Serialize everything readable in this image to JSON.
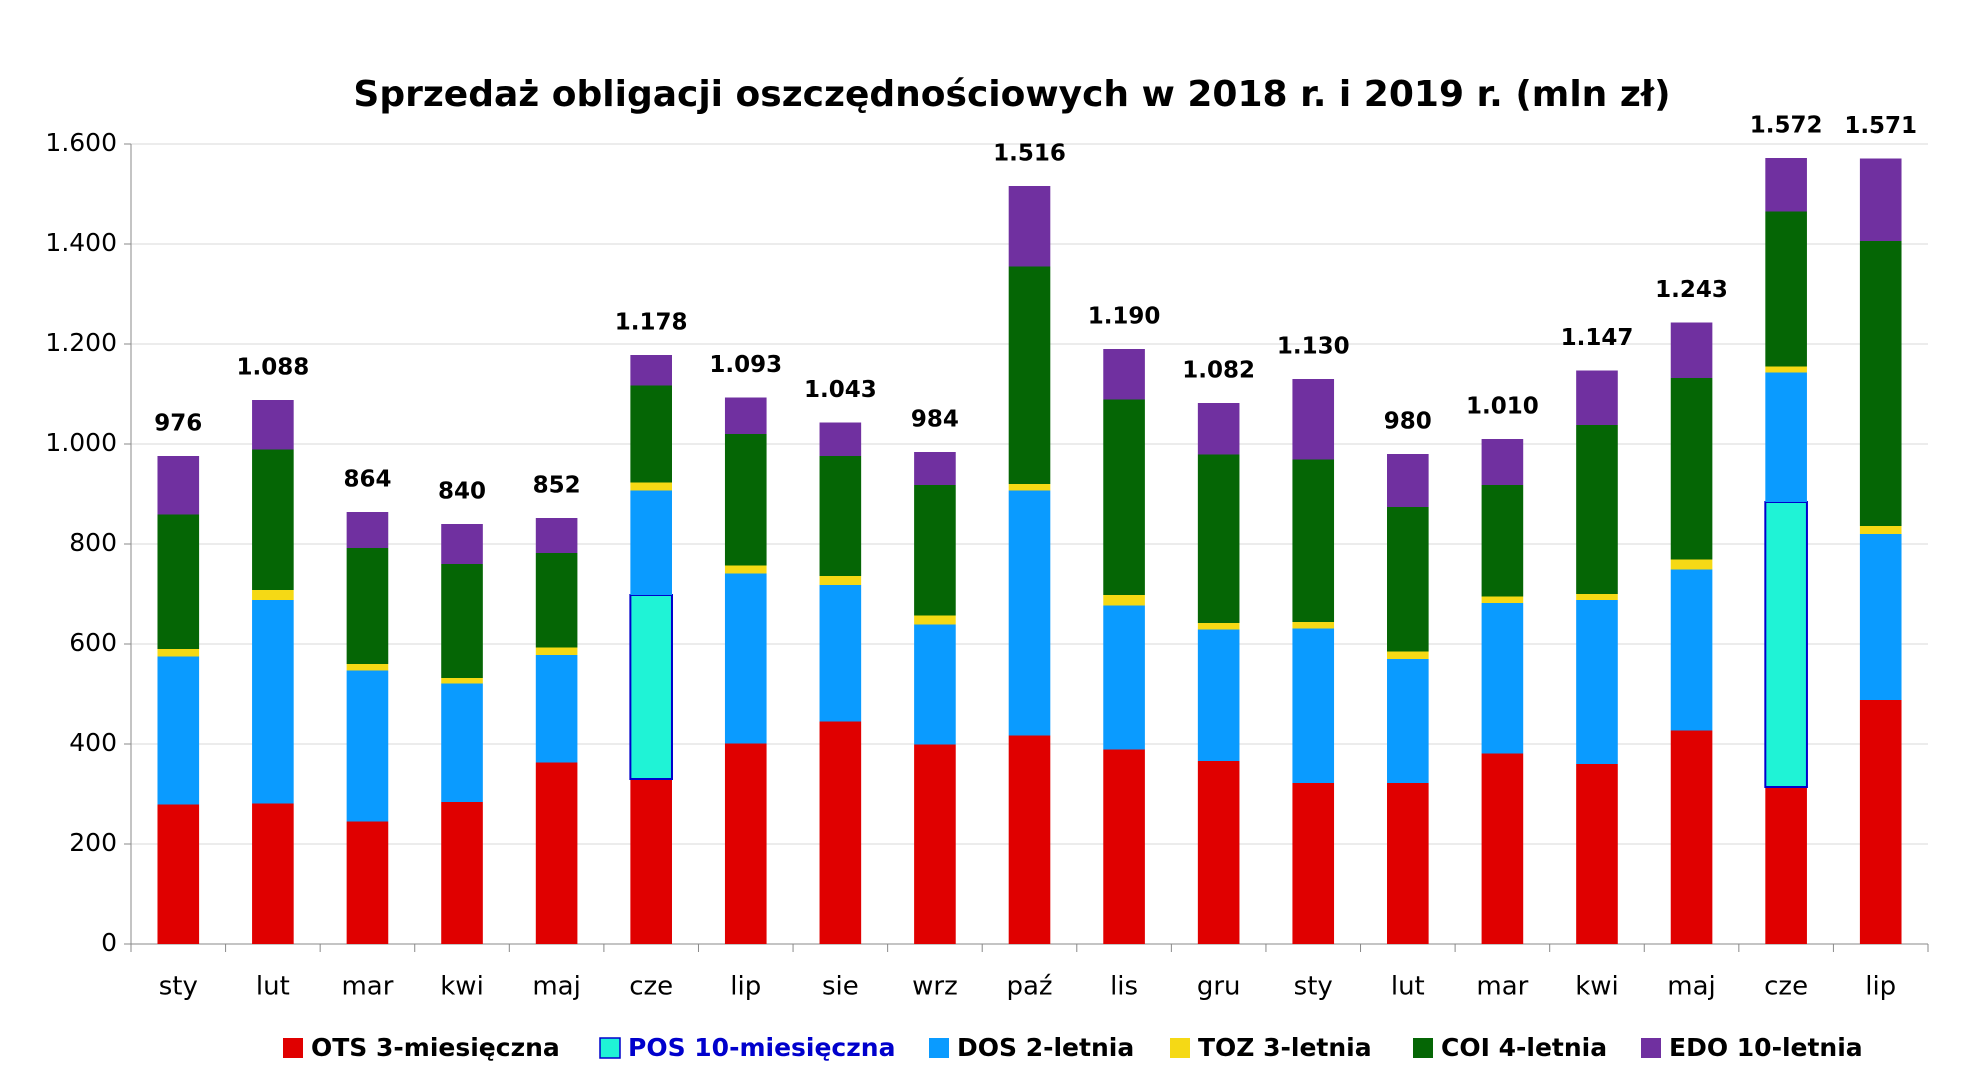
{
  "chart_data": {
    "type": "stacked-bar",
    "title": "Sprzedaż obligacji oszczędnościowych w 2018 r. i 2019 r. (mln zł)",
    "categories": [
      "sty",
      "lut",
      "mar",
      "kwi",
      "maj",
      "cze",
      "lip",
      "sie",
      "wrz",
      "paź",
      "lis",
      "gru",
      "sty",
      "lut",
      "mar",
      "kwi",
      "maj",
      "cze",
      "lip"
    ],
    "series": [
      {
        "name": "OTS 3-miesięczna",
        "color": "#e00000",
        "values": [
          279,
          281,
          245,
          284,
          363,
          330,
          401,
          445,
          399,
          417,
          389,
          366,
          322,
          322,
          381,
          360,
          427,
          314,
          488
        ]
      },
      {
        "name": "POS 10-miesięczna",
        "color": "#1ff3d6",
        "outline": "#0000cc",
        "label_color": "#0000cc",
        "values": [
          null,
          null,
          null,
          null,
          null,
          368,
          null,
          null,
          null,
          null,
          null,
          null,
          null,
          null,
          null,
          null,
          null,
          570,
          null
        ]
      },
      {
        "name": "DOS 2-letnia",
        "color": "#0a9bff",
        "values": [
          296,
          407,
          302,
          237,
          215,
          209,
          340,
          273,
          240,
          490,
          288,
          263,
          309,
          248,
          301,
          328,
          322,
          259,
          332
        ]
      },
      {
        "name": "TOZ 3-letnia",
        "color": "#f5d915",
        "values": [
          15,
          20,
          13,
          11,
          15,
          16,
          16,
          18,
          18,
          13,
          21,
          13,
          13,
          15,
          13,
          12,
          20,
          12,
          16
        ]
      },
      {
        "name": "COI 4-letnia",
        "color": "#056605",
        "values": [
          269,
          281,
          232,
          228,
          189,
          194,
          263,
          240,
          261,
          435,
          391,
          337,
          325,
          289,
          223,
          338,
          363,
          310,
          570
        ]
      },
      {
        "name": "EDO 10-letnia",
        "color": "#7030a0",
        "values": [
          117,
          99,
          72,
          80,
          70,
          61,
          73,
          67,
          66,
          161,
          101,
          103,
          161,
          106,
          92,
          109,
          111,
          107,
          165
        ]
      }
    ],
    "totals": {
      "values": [
        976,
        1088,
        864,
        840,
        852,
        1178,
        1093,
        1043,
        984,
        1516,
        1190,
        1082,
        1130,
        980,
        1010,
        1147,
        1243,
        1572,
        1571
      ],
      "value_labels": [
        "976",
        "1.088",
        "864",
        "840",
        "852",
        "1.178",
        "1.093",
        "1.043",
        "984",
        "1.516",
        "1.190",
        "1.082",
        "1.130",
        "980",
        "1.010",
        "1.147",
        "1.243",
        "1.572",
        "1.571"
      ]
    },
    "ylim": [
      0,
      1600
    ],
    "yticks": [
      0,
      200,
      400,
      600,
      800,
      {
        "value": 1000,
        "label": "1.000"
      },
      {
        "value": 1200,
        "label": "1.200"
      },
      {
        "value": 1400,
        "label": "1.400"
      },
      {
        "value": 1600,
        "label": "1.600"
      }
    ],
    "grid": true
  }
}
